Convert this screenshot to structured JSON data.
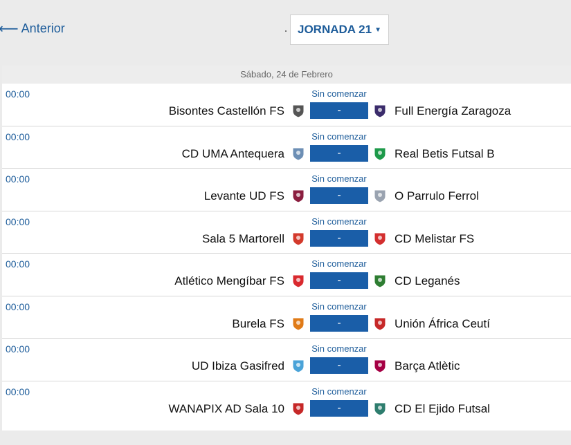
{
  "nav": {
    "prev_label": "Anterior",
    "jornada_label": "JORNADA 21"
  },
  "date_label": "Sábado, 24 de Febrero",
  "matches": [
    {
      "time": "00:00",
      "status": "Sin comenzar",
      "home": "Bisontes Castellón FS",
      "away": "Full Energía Zaragoza",
      "score": "-",
      "home_crest": "bisontes-crest",
      "away_crest": "zaragoza-crest",
      "home_color": "#555555",
      "away_color": "#3b2c6b"
    },
    {
      "time": "00:00",
      "status": "Sin comenzar",
      "home": "CD UMA Antequera",
      "away": "Real Betis Futsal B",
      "score": "-",
      "home_crest": "antequera-crest",
      "away_crest": "betis-crest",
      "home_color": "#6d8fb5",
      "away_color": "#1e9a4a"
    },
    {
      "time": "00:00",
      "status": "Sin comenzar",
      "home": "Levante UD FS",
      "away": "O Parrulo Ferrol",
      "score": "-",
      "home_crest": "levante-crest",
      "away_crest": "parrulo-crest",
      "home_color": "#8b1e3f",
      "away_color": "#9aa3b0"
    },
    {
      "time": "00:00",
      "status": "Sin comenzar",
      "home": "Sala 5 Martorell",
      "away": "CD Melistar FS",
      "score": "-",
      "home_crest": "martorell-crest",
      "away_crest": "melistar-crest",
      "home_color": "#d33a2c",
      "away_color": "#d32f2f"
    },
    {
      "time": "00:00",
      "status": "Sin comenzar",
      "home": "Atlético Mengíbar FS",
      "away": "CD Leganés",
      "score": "-",
      "home_crest": "mengibar-crest",
      "away_crest": "leganes-crest",
      "home_color": "#d9292e",
      "away_color": "#2e7d32"
    },
    {
      "time": "00:00",
      "status": "Sin comenzar",
      "home": "Burela FS",
      "away": "Unión África Ceutí",
      "score": "-",
      "home_crest": "burela-crest",
      "away_crest": "ceuti-crest",
      "home_color": "#e07b18",
      "away_color": "#c62828"
    },
    {
      "time": "00:00",
      "status": "Sin comenzar",
      "home": "UD Ibiza Gasifred",
      "away": "Barça Atlètic",
      "score": "-",
      "home_crest": "ibiza-crest",
      "away_crest": "barca-crest",
      "home_color": "#4aa3d8",
      "away_color": "#a50044"
    },
    {
      "time": "00:00",
      "status": "Sin comenzar",
      "home": "WANAPIX AD Sala 10",
      "away": "CD El Ejido Futsal",
      "score": "-",
      "home_crest": "wanapix-crest",
      "away_crest": "ejido-crest",
      "home_color": "#c62828",
      "away_color": "#2e7d6e"
    }
  ],
  "colors": {
    "accent": "#1d5c9a",
    "score_bg": "#1a5ea8",
    "page_bg": "#ebebeb"
  }
}
